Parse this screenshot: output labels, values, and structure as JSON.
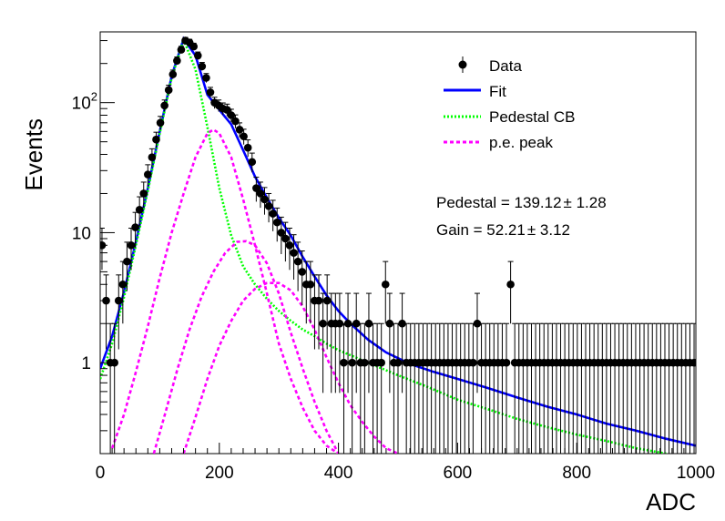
{
  "chart_data": {
    "type": "scatter",
    "xlabel": "ADC",
    "ylabel": "Events",
    "xlim": [
      0,
      1000
    ],
    "ylim": [
      0.2,
      350
    ],
    "yscale": "log",
    "grid": false,
    "legend_position": "top-right",
    "x_ticks": [
      {
        "value": 0,
        "label": "0"
      },
      {
        "value": 200,
        "label": "200"
      },
      {
        "value": 400,
        "label": "400"
      },
      {
        "value": 600,
        "label": "600"
      },
      {
        "value": 800,
        "label": "800"
      },
      {
        "value": 1000,
        "label": "1000"
      }
    ],
    "y_ticks": [
      {
        "value": 1,
        "label": "1"
      },
      {
        "value": 10,
        "label": "10"
      },
      {
        "value": 100,
        "label": "10",
        "exponent": "2"
      }
    ],
    "legend": [
      {
        "label": "Data",
        "style": "marker"
      },
      {
        "label": "Fit",
        "style": "solid",
        "color": "#0000ff"
      },
      {
        "label": "Pedestal CB",
        "style": "dotted",
        "color": "#00ff00"
      },
      {
        "label": "p.e. peak",
        "style": "dashed",
        "color": "#ff00ff"
      }
    ],
    "annotations": [
      {
        "text": "Pedestal = 139.12",
        "pm": "±",
        "value": " 1.28"
      },
      {
        "text": "Gain = 52.21",
        "pm": "±",
        "value": " 3.12"
      }
    ],
    "colors": {
      "data": "#000000",
      "fit": "#0000ff",
      "pedestal": "#00ff00",
      "pe_peak": "#ff00ff"
    },
    "series": [
      {
        "name": "Data",
        "kind": "points",
        "x": [
          3,
          10,
          17,
          24,
          31,
          38,
          45,
          52,
          59,
          66,
          73,
          80,
          87,
          94,
          101,
          108,
          115,
          122,
          129,
          136,
          143,
          150,
          157,
          164,
          171,
          178,
          185,
          192,
          199,
          206,
          213,
          220,
          227,
          234,
          241,
          248,
          255,
          262,
          269,
          276,
          283,
          290,
          297,
          304,
          311,
          318,
          325,
          332,
          339,
          346,
          353,
          360,
          367,
          374,
          381,
          388,
          395,
          402,
          409,
          416,
          423,
          430,
          437,
          444,
          451,
          458,
          465,
          472,
          479,
          486,
          493,
          500,
          507,
          514,
          521,
          528,
          535,
          542,
          549,
          556,
          563,
          570,
          577,
          584,
          591,
          598,
          605,
          612,
          619,
          626,
          633,
          640,
          647,
          654,
          661,
          668,
          675,
          682,
          689,
          696,
          703,
          710,
          717,
          724,
          731,
          738,
          745,
          752,
          759,
          766,
          773,
          780,
          787,
          794,
          801,
          808,
          815,
          822,
          829,
          836,
          843,
          850,
          857,
          864,
          871,
          878,
          885,
          892,
          899,
          906,
          913,
          920,
          927,
          934,
          941,
          948,
          955,
          962,
          969,
          976,
          983,
          990,
          997
        ],
        "y": [
          8,
          3,
          1,
          1,
          3,
          4,
          6,
          8,
          11,
          15,
          20,
          28,
          38,
          52,
          70,
          95,
          125,
          165,
          210,
          255,
          300,
          290,
          270,
          230,
          190,
          155,
          120,
          100,
          95,
          90,
          88,
          80,
          72,
          62,
          55,
          45,
          35,
          22,
          20,
          18,
          16,
          14,
          12,
          10,
          9,
          8,
          7,
          6,
          5,
          4,
          4,
          3,
          3,
          2,
          3,
          2,
          2,
          2,
          1,
          2,
          1,
          2,
          1,
          1,
          2,
          1,
          1,
          1,
          4,
          2,
          1,
          1,
          2,
          1,
          1,
          1,
          1,
          1,
          1,
          1,
          1,
          1,
          1,
          1,
          1,
          1,
          1,
          1,
          1,
          1,
          2,
          1,
          1,
          1,
          1,
          1,
          1,
          1,
          4,
          1,
          1,
          1,
          1,
          1,
          1,
          1,
          1,
          1,
          1,
          1,
          1,
          1,
          1,
          1,
          1,
          1,
          1,
          1,
          1,
          1,
          1,
          1,
          1,
          1,
          1,
          1,
          1,
          1,
          1,
          1,
          1,
          1,
          1,
          1,
          1,
          1,
          1,
          1,
          1,
          1,
          1,
          1,
          1
        ]
      },
      {
        "name": "Fit",
        "kind": "line",
        "x": [
          0,
          20,
          40,
          60,
          80,
          100,
          120,
          140,
          160,
          180,
          200,
          220,
          240,
          260,
          280,
          300,
          320,
          340,
          360,
          380,
          400,
          420,
          450,
          480,
          520,
          560,
          600,
          650,
          700,
          750,
          800,
          850,
          900,
          950,
          1000
        ],
        "y": [
          0.9,
          1.6,
          3.5,
          8.5,
          22,
          60,
          160,
          310,
          230,
          115,
          88,
          68,
          43,
          27,
          18.5,
          13,
          9.5,
          6.5,
          4.6,
          3.3,
          2.5,
          2.0,
          1.5,
          1.2,
          0.98,
          0.85,
          0.75,
          0.64,
          0.54,
          0.46,
          0.4,
          0.34,
          0.3,
          0.26,
          0.23
        ]
      },
      {
        "name": "Pedestal CB",
        "kind": "line",
        "x": [
          0,
          20,
          40,
          60,
          80,
          100,
          120,
          140,
          160,
          180,
          200,
          220,
          240,
          260,
          280,
          300,
          320,
          340,
          360,
          380,
          400,
          450,
          500,
          550,
          600,
          650,
          700,
          750,
          800,
          850,
          900,
          950
        ],
        "y": [
          0.75,
          1.4,
          3.2,
          8,
          21,
          58,
          155,
          305,
          180,
          65,
          22,
          9.5,
          5.5,
          4,
          3.1,
          2.5,
          2.1,
          1.8,
          1.6,
          1.4,
          1.25,
          1.0,
          0.8,
          0.65,
          0.52,
          0.44,
          0.37,
          0.32,
          0.28,
          0.25,
          0.22,
          0.2
        ]
      },
      {
        "name": "p.e. peak",
        "kind": "line",
        "x": [
          20,
          40,
          60,
          80,
          100,
          120,
          140,
          160,
          180,
          190,
          200,
          220,
          240,
          260,
          280,
          300,
          320,
          340,
          360,
          380,
          400
        ],
        "y": [
          0.22,
          0.4,
          0.85,
          1.9,
          4.5,
          10,
          20,
          38,
          58,
          62,
          58,
          38,
          18,
          8,
          3.4,
          1.4,
          0.75,
          0.45,
          0.3,
          0.23,
          0.2
        ]
      },
      {
        "name": "p.e. peak",
        "kind": "line",
        "x": [
          90,
          110,
          130,
          150,
          170,
          190,
          210,
          230,
          245,
          260,
          280,
          300,
          320,
          340,
          360,
          380,
          400
        ],
        "y": [
          0.2,
          0.42,
          0.9,
          1.8,
          3.2,
          5,
          7,
          8.5,
          8.6,
          8,
          5.8,
          3.4,
          1.7,
          0.9,
          0.5,
          0.3,
          0.2
        ]
      },
      {
        "name": "p.e. peak",
        "kind": "line",
        "x": [
          140,
          160,
          180,
          200,
          220,
          240,
          260,
          280,
          300,
          320,
          340,
          360,
          380,
          400,
          420,
          440,
          460,
          480,
          500
        ],
        "y": [
          0.2,
          0.38,
          0.75,
          1.35,
          2.1,
          3,
          3.7,
          4.1,
          4.1,
          3.6,
          2.7,
          1.8,
          1.1,
          0.7,
          0.47,
          0.35,
          0.27,
          0.22,
          0.2
        ]
      }
    ]
  }
}
